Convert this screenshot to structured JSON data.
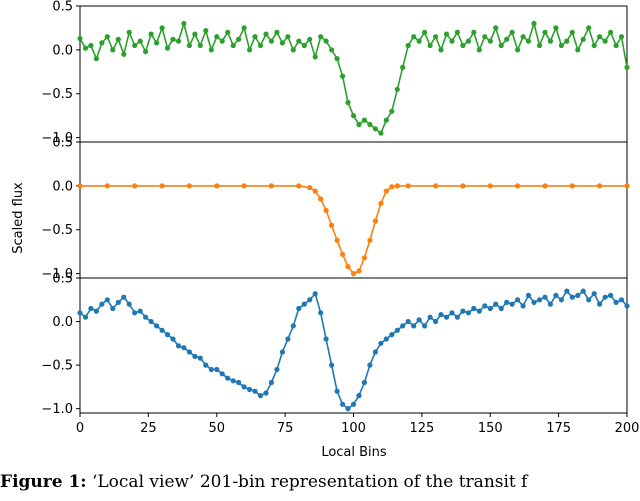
{
  "chart_data": {
    "type": "line",
    "xlabel": "Local Bins",
    "ylabel": "Scaled flux",
    "xlim": [
      0,
      200
    ],
    "x_ticks": [
      "0",
      "25",
      "50",
      "75",
      "100",
      "125",
      "150",
      "175",
      "200"
    ],
    "panels": [
      {
        "name": "top",
        "color": "#2ca02c",
        "ylim": [
          -1.05,
          0.5
        ],
        "y_ticks": [
          "0.5",
          "0.0",
          "−0.5",
          "−1.0"
        ],
        "x": [
          0,
          2,
          4,
          6,
          8,
          10,
          12,
          14,
          16,
          18,
          20,
          22,
          24,
          26,
          28,
          30,
          32,
          34,
          36,
          38,
          40,
          42,
          44,
          46,
          48,
          50,
          52,
          54,
          56,
          58,
          60,
          62,
          64,
          66,
          68,
          70,
          72,
          74,
          76,
          78,
          80,
          82,
          84,
          86,
          88,
          90,
          92,
          94,
          96,
          98,
          100,
          102,
          104,
          106,
          108,
          110,
          112,
          114,
          116,
          118,
          120,
          122,
          124,
          126,
          128,
          130,
          132,
          134,
          136,
          138,
          140,
          142,
          144,
          146,
          148,
          150,
          152,
          154,
          156,
          158,
          160,
          162,
          164,
          166,
          168,
          170,
          172,
          174,
          176,
          178,
          180,
          182,
          184,
          186,
          188,
          190,
          192,
          194,
          196,
          198,
          200
        ],
        "values": [
          0.13,
          0.02,
          0.05,
          -0.1,
          0.08,
          0.15,
          0.0,
          0.12,
          -0.05,
          0.2,
          0.05,
          0.1,
          -0.02,
          0.18,
          0.08,
          0.25,
          0.02,
          0.12,
          0.1,
          0.3,
          0.05,
          0.18,
          0.05,
          0.22,
          0.0,
          0.15,
          0.1,
          0.2,
          0.05,
          0.12,
          0.25,
          0.0,
          0.15,
          0.05,
          0.18,
          0.1,
          0.2,
          0.08,
          0.15,
          0.0,
          0.1,
          0.05,
          0.12,
          -0.08,
          0.15,
          0.1,
          0.0,
          -0.1,
          -0.3,
          -0.6,
          -0.75,
          -0.85,
          -0.8,
          -0.85,
          -0.9,
          -0.95,
          -0.8,
          -0.7,
          -0.45,
          -0.2,
          0.05,
          0.15,
          0.1,
          0.2,
          0.05,
          0.15,
          0.0,
          0.18,
          0.1,
          0.2,
          0.05,
          0.1,
          0.2,
          0.0,
          0.15,
          0.1,
          0.25,
          0.05,
          0.12,
          0.2,
          0.0,
          0.15,
          0.1,
          0.3,
          0.05,
          0.2,
          0.1,
          0.25,
          0.05,
          0.1,
          0.2,
          0.0,
          0.12,
          0.25,
          0.05,
          0.15,
          0.1,
          0.2,
          0.05,
          0.15,
          -0.2
        ]
      },
      {
        "name": "middle",
        "color": "#ff7f0e",
        "ylim": [
          -1.05,
          0.5
        ],
        "y_ticks": [
          "0.5",
          "0.0",
          "−0.5",
          "−1.0"
        ],
        "x": [
          0,
          10,
          20,
          30,
          40,
          50,
          60,
          70,
          80,
          84,
          86,
          88,
          90,
          92,
          94,
          96,
          98,
          100,
          102,
          104,
          106,
          108,
          110,
          112,
          114,
          116,
          120,
          130,
          140,
          150,
          160,
          170,
          180,
          190,
          200
        ],
        "values": [
          0,
          0,
          0,
          0,
          0,
          0,
          0,
          0,
          0,
          -0.02,
          -0.06,
          -0.15,
          -0.28,
          -0.45,
          -0.62,
          -0.78,
          -0.92,
          -1.0,
          -0.97,
          -0.82,
          -0.62,
          -0.4,
          -0.2,
          -0.06,
          -0.01,
          0,
          0,
          0,
          0,
          0,
          0,
          0,
          0,
          0,
          0
        ]
      },
      {
        "name": "bottom",
        "color": "#1f77b4",
        "ylim": [
          -1.05,
          0.5
        ],
        "y_ticks": [
          "0.5",
          "0.0",
          "−0.5",
          "−1.0"
        ],
        "x": [
          0,
          2,
          4,
          6,
          8,
          10,
          12,
          14,
          16,
          18,
          20,
          22,
          24,
          26,
          28,
          30,
          32,
          34,
          36,
          38,
          40,
          42,
          44,
          46,
          48,
          50,
          52,
          54,
          56,
          58,
          60,
          62,
          64,
          66,
          68,
          70,
          72,
          74,
          76,
          78,
          80,
          82,
          84,
          86,
          88,
          90,
          92,
          94,
          96,
          98,
          100,
          102,
          104,
          106,
          108,
          110,
          112,
          114,
          116,
          118,
          120,
          122,
          124,
          126,
          128,
          130,
          132,
          134,
          136,
          138,
          140,
          142,
          144,
          146,
          148,
          150,
          152,
          154,
          156,
          158,
          160,
          162,
          164,
          166,
          168,
          170,
          172,
          174,
          176,
          178,
          180,
          182,
          184,
          186,
          188,
          190,
          192,
          194,
          196,
          198,
          200
        ],
        "values": [
          0.1,
          0.05,
          0.15,
          0.12,
          0.2,
          0.25,
          0.15,
          0.22,
          0.28,
          0.2,
          0.1,
          0.12,
          0.05,
          0.0,
          -0.05,
          -0.1,
          -0.15,
          -0.2,
          -0.28,
          -0.3,
          -0.35,
          -0.4,
          -0.42,
          -0.5,
          -0.55,
          -0.55,
          -0.6,
          -0.65,
          -0.68,
          -0.7,
          -0.75,
          -0.78,
          -0.8,
          -0.85,
          -0.82,
          -0.7,
          -0.55,
          -0.35,
          -0.2,
          -0.05,
          0.15,
          0.2,
          0.25,
          0.32,
          0.1,
          -0.2,
          -0.5,
          -0.8,
          -0.95,
          -1.0,
          -0.95,
          -0.85,
          -0.7,
          -0.5,
          -0.35,
          -0.25,
          -0.2,
          -0.15,
          -0.1,
          -0.05,
          0.0,
          -0.05,
          0.02,
          -0.05,
          0.05,
          0.0,
          0.08,
          0.05,
          0.1,
          0.05,
          0.12,
          0.1,
          0.15,
          0.12,
          0.18,
          0.15,
          0.2,
          0.15,
          0.22,
          0.2,
          0.25,
          0.18,
          0.3,
          0.22,
          0.25,
          0.28,
          0.2,
          0.3,
          0.25,
          0.35,
          0.28,
          0.3,
          0.35,
          0.25,
          0.32,
          0.2,
          0.28,
          0.3,
          0.22,
          0.25,
          0.18
        ]
      }
    ]
  },
  "caption": {
    "label": "Figure 1:",
    "text": "‘Local view’ 201-bin representation of the transit f"
  }
}
